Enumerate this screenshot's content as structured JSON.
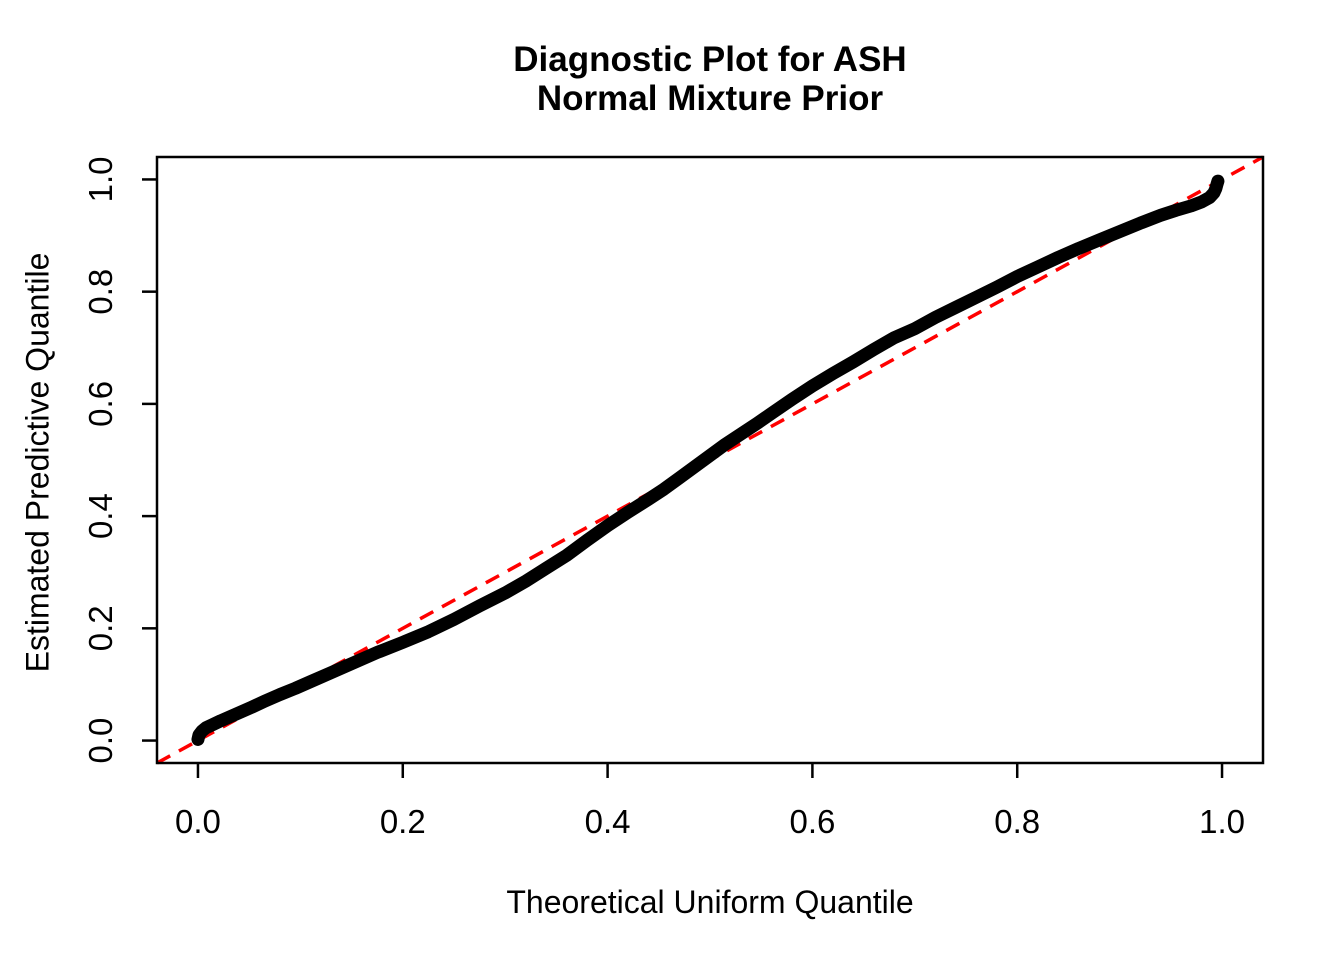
{
  "title": {
    "line1": "Diagnostic Plot for ASH",
    "line2": "Normal Mixture Prior"
  },
  "chart_data": {
    "type": "scatter",
    "title": "Diagnostic Plot for ASH\nNormal Mixture Prior",
    "xlabel": "Theoretical Uniform Quantile",
    "ylabel": "Estimated Predictive Quantile",
    "xlim": [
      -0.04,
      1.04
    ],
    "ylim": [
      -0.04,
      1.04
    ],
    "x_ticks": [
      0.0,
      0.2,
      0.4,
      0.6,
      0.8,
      1.0
    ],
    "x_tick_labels": [
      "0.0",
      "0.2",
      "0.4",
      "0.6",
      "0.8",
      "1.0"
    ],
    "y_ticks": [
      0.0,
      0.2,
      0.4,
      0.6,
      0.8,
      1.0
    ],
    "y_tick_labels": [
      "0.0",
      "0.2",
      "0.4",
      "0.6",
      "0.8",
      "1.0"
    ],
    "grid": false,
    "legend": "none",
    "series": [
      {
        "name": "estimated-predictive-quantiles",
        "kind": "point-curve",
        "color": "#000000",
        "points": [
          [
            0.0,
            0.002
          ],
          [
            0.001,
            0.01
          ],
          [
            0.004,
            0.017
          ],
          [
            0.008,
            0.023
          ],
          [
            0.014,
            0.028
          ],
          [
            0.022,
            0.035
          ],
          [
            0.032,
            0.043
          ],
          [
            0.042,
            0.051
          ],
          [
            0.052,
            0.059
          ],
          [
            0.065,
            0.07
          ],
          [
            0.08,
            0.082
          ],
          [
            0.095,
            0.093
          ],
          [
            0.11,
            0.105
          ],
          [
            0.13,
            0.121
          ],
          [
            0.15,
            0.137
          ],
          [
            0.175,
            0.157
          ],
          [
            0.2,
            0.175
          ],
          [
            0.225,
            0.194
          ],
          [
            0.25,
            0.216
          ],
          [
            0.275,
            0.24
          ],
          [
            0.3,
            0.263
          ],
          [
            0.32,
            0.284
          ],
          [
            0.34,
            0.307
          ],
          [
            0.36,
            0.33
          ],
          [
            0.38,
            0.357
          ],
          [
            0.4,
            0.383
          ],
          [
            0.42,
            0.407
          ],
          [
            0.44,
            0.43
          ],
          [
            0.455,
            0.448
          ],
          [
            0.47,
            0.468
          ],
          [
            0.485,
            0.488
          ],
          [
            0.5,
            0.508
          ],
          [
            0.515,
            0.528
          ],
          [
            0.53,
            0.546
          ],
          [
            0.545,
            0.564
          ],
          [
            0.56,
            0.583
          ],
          [
            0.58,
            0.608
          ],
          [
            0.6,
            0.632
          ],
          [
            0.62,
            0.654
          ],
          [
            0.64,
            0.675
          ],
          [
            0.66,
            0.697
          ],
          [
            0.68,
            0.718
          ],
          [
            0.7,
            0.734
          ],
          [
            0.72,
            0.754
          ],
          [
            0.74,
            0.772
          ],
          [
            0.76,
            0.79
          ],
          [
            0.78,
            0.808
          ],
          [
            0.8,
            0.827
          ],
          [
            0.82,
            0.844
          ],
          [
            0.84,
            0.861
          ],
          [
            0.86,
            0.877
          ],
          [
            0.88,
            0.892
          ],
          [
            0.9,
            0.907
          ],
          [
            0.92,
            0.922
          ],
          [
            0.94,
            0.936
          ],
          [
            0.955,
            0.945
          ],
          [
            0.97,
            0.953
          ],
          [
            0.98,
            0.96
          ],
          [
            0.988,
            0.968
          ],
          [
            0.992,
            0.976
          ],
          [
            0.994,
            0.984
          ],
          [
            0.995,
            0.991
          ],
          [
            0.996,
            0.997
          ]
        ]
      },
      {
        "name": "identity-reference-line",
        "kind": "line",
        "style": "dashed",
        "color": "#FF0000",
        "points": [
          [
            -0.04,
            -0.04
          ],
          [
            1.04,
            1.04
          ]
        ]
      }
    ]
  },
  "colors": {
    "curve": "#000000",
    "reference_line": "#FF0000",
    "axis": "#000000",
    "background": "#FFFFFF"
  }
}
